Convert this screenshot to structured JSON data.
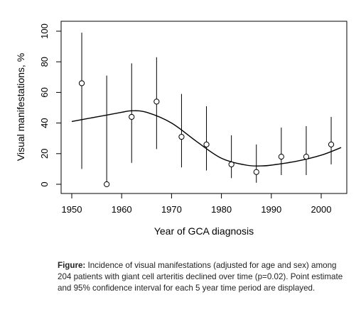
{
  "chart_data": {
    "type": "scatter",
    "xlabel": "Year of GCA diagnosis",
    "ylabel": "Visual manifestations, %",
    "xlim": [
      1950,
      2005
    ],
    "ylim": [
      0,
      100
    ],
    "x_ticks": [
      1950,
      1960,
      1970,
      1980,
      1990,
      2000
    ],
    "y_ticks": [
      0,
      20,
      40,
      60,
      80,
      100
    ],
    "grid": false,
    "points": [
      {
        "x": 1952,
        "y": 66,
        "lower": 10,
        "upper": 99
      },
      {
        "x": 1957,
        "y": 0,
        "lower": 0,
        "upper": 71
      },
      {
        "x": 1962,
        "y": 44,
        "lower": 14,
        "upper": 79
      },
      {
        "x": 1967,
        "y": 54,
        "lower": 23,
        "upper": 83
      },
      {
        "x": 1972,
        "y": 31,
        "lower": 11,
        "upper": 59
      },
      {
        "x": 1977,
        "y": 26,
        "lower": 9,
        "upper": 51
      },
      {
        "x": 1982,
        "y": 13,
        "lower": 4,
        "upper": 32
      },
      {
        "x": 1987,
        "y": 8,
        "lower": 1,
        "upper": 26
      },
      {
        "x": 1992,
        "y": 18,
        "lower": 6,
        "upper": 37
      },
      {
        "x": 1997,
        "y": 18,
        "lower": 6,
        "upper": 38
      },
      {
        "x": 2002,
        "y": 26,
        "lower": 13,
        "upper": 44
      }
    ],
    "trend": {
      "x": [
        1950,
        1955,
        1960,
        1962,
        1965,
        1970,
        1975,
        1980,
        1985,
        1988,
        1990,
        1995,
        2000,
        2004
      ],
      "y": [
        41,
        44,
        47,
        48,
        47,
        40,
        28,
        17,
        12.5,
        12,
        12.5,
        15,
        19,
        24
      ]
    }
  },
  "caption": {
    "label": "Figure:",
    "text": " Incidence of visual manifestations (adjusted for age and sex) among 204 patients with giant cell arteritis declined over time (p=0.02). Point estimate and 95% confidence interval for each 5 year time period are displayed."
  }
}
